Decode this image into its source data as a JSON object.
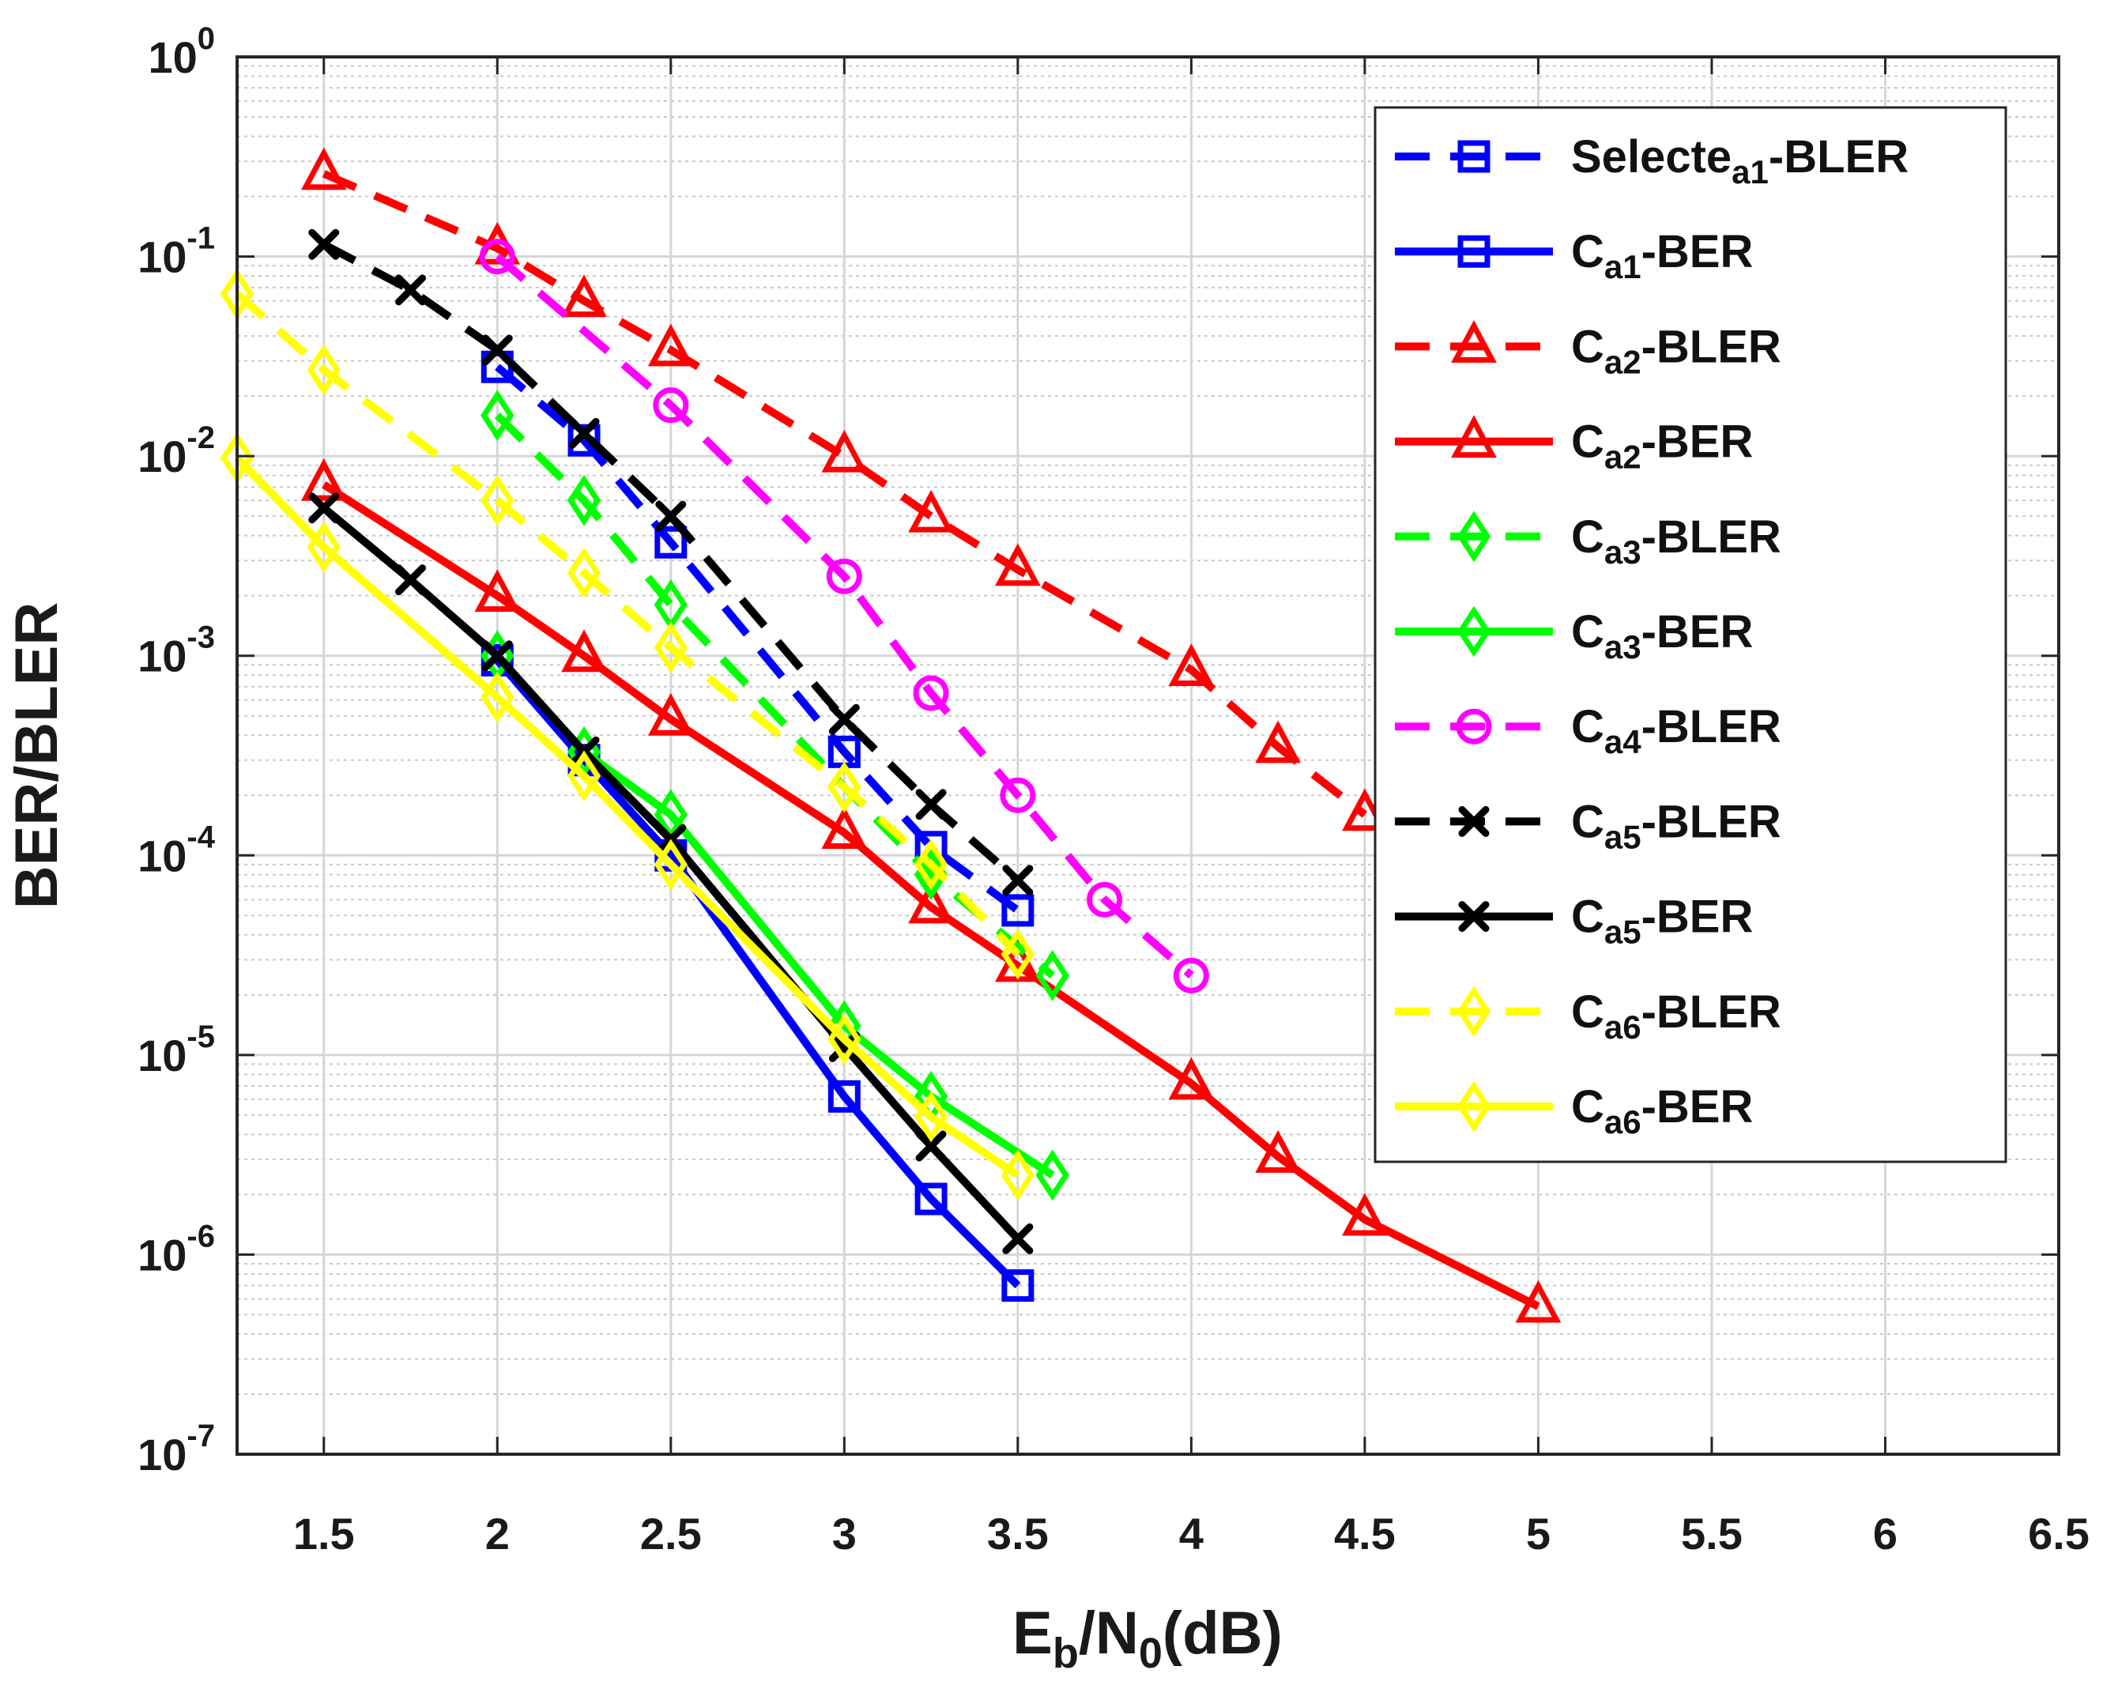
{
  "chart_data": {
    "type": "line",
    "yscale": "log",
    "xlim": [
      1.25,
      6.5
    ],
    "ylim": [
      1e-07,
      1
    ],
    "x_ticks": [
      "1.5",
      "2",
      "2.5",
      "3",
      "3.5",
      "4",
      "4.5",
      "5",
      "5.5",
      "6",
      "6.5"
    ],
    "y_ticks": [
      {
        "base": "10",
        "exp": "0"
      },
      {
        "base": "10",
        "exp": "-1"
      },
      {
        "base": "10",
        "exp": "-2"
      },
      {
        "base": "10",
        "exp": "-3"
      },
      {
        "base": "10",
        "exp": "-4"
      },
      {
        "base": "10",
        "exp": "-5"
      },
      {
        "base": "10",
        "exp": "-6"
      },
      {
        "base": "10",
        "exp": "-7"
      }
    ],
    "xlabel": {
      "main": "E",
      "sub": "b",
      "mid": "/N",
      "sub2": "0",
      "tail": "(dB)"
    },
    "ylabel": "BER/BLER",
    "grid": true,
    "legend_position": "top-right",
    "series": [
      {
        "key": "a1-bler",
        "label_main": "Selecte",
        "label_sub": "a1",
        "label_tail": "-BLER",
        "color": "#0000ff",
        "dash": "dashed",
        "marker": "square",
        "x": [
          2,
          2.25,
          2.5,
          3,
          3.25,
          3.5
        ],
        "y": [
          0.028,
          0.012,
          0.0037,
          0.00033,
          0.00011,
          5.3e-05
        ]
      },
      {
        "key": "a1-ber",
        "label_main": "C",
        "label_sub": "a1",
        "label_tail": "-BER",
        "color": "#0000ff",
        "dash": "solid",
        "marker": "square",
        "x": [
          2,
          2.25,
          2.5,
          3,
          3.25,
          3.5
        ],
        "y": [
          0.00095,
          0.0003,
          0.0001,
          6.2e-06,
          1.9e-06,
          7e-07
        ]
      },
      {
        "key": "a2-bler",
        "label_main": "C",
        "label_sub": "a2",
        "label_tail": "-BLER",
        "color": "#ff0000",
        "dash": "dashed",
        "marker": "triangle",
        "x": [
          1.5,
          2,
          2.25,
          2.5,
          3,
          3.25,
          3.5,
          4,
          4.25,
          4.5
        ],
        "y": [
          0.26,
          0.11,
          0.06,
          0.034,
          0.01,
          0.005,
          0.0027,
          0.00085,
          0.00035,
          0.00016
        ]
      },
      {
        "key": "a2-ber",
        "label_main": "C",
        "label_sub": "a2",
        "label_tail": "-BER",
        "color": "#ff0000",
        "dash": "solid",
        "marker": "triangle",
        "x": [
          1.5,
          2,
          2.25,
          2.5,
          3,
          3.25,
          3.5,
          4,
          4.25,
          4.5,
          5
        ],
        "y": [
          0.0072,
          0.002,
          0.001,
          0.00048,
          0.00013,
          5.5e-05,
          2.8e-05,
          7.2e-06,
          3.1e-06,
          1.5e-06,
          5.5e-07
        ]
      },
      {
        "key": "a3-bler",
        "label_main": "C",
        "label_sub": "a3",
        "label_tail": "-BLER",
        "color": "#00ff00",
        "dash": "dashed",
        "marker": "diamond",
        "x": [
          2,
          2.25,
          2.5,
          3,
          3.25,
          3.6
        ],
        "y": [
          0.016,
          0.006,
          0.0018,
          0.00022,
          8e-05,
          2.5e-05
        ]
      },
      {
        "key": "a3-ber",
        "label_main": "C",
        "label_sub": "a3",
        "label_tail": "-BER",
        "color": "#00ff00",
        "dash": "solid",
        "marker": "diamond",
        "x": [
          2,
          2.25,
          2.5,
          3,
          3.25,
          3.6
        ],
        "y": [
          0.001,
          0.00033,
          0.00016,
          1.4e-05,
          6.2e-06,
          2.5e-06
        ]
      },
      {
        "key": "a4-bler",
        "label_main": "C",
        "label_sub": "a4",
        "label_tail": "-BLER",
        "color": "#ff00ff",
        "dash": "dashed",
        "marker": "circle",
        "x": [
          2,
          2.5,
          3,
          3.25,
          3.5,
          3.75,
          4
        ],
        "y": [
          0.1,
          0.018,
          0.0025,
          0.00065,
          0.0002,
          6e-05,
          2.5e-05
        ]
      },
      {
        "key": "a5-bler",
        "label_main": "C",
        "label_sub": "a5",
        "label_tail": "-BLER",
        "color": "#000000",
        "dash": "dashed",
        "marker": "x",
        "x": [
          1.5,
          1.75,
          2,
          2.25,
          2.5,
          3,
          3.25,
          3.5
        ],
        "y": [
          0.115,
          0.068,
          0.034,
          0.013,
          0.005,
          0.00048,
          0.00018,
          7.5e-05
        ]
      },
      {
        "key": "a5-ber",
        "label_main": "C",
        "label_sub": "a5",
        "label_tail": "-BER",
        "color": "#000000",
        "dash": "solid",
        "marker": "x",
        "x": [
          1.5,
          1.75,
          2,
          2.25,
          2.5,
          3,
          3.25,
          3.5
        ],
        "y": [
          0.0055,
          0.0024,
          0.001,
          0.00033,
          0.00012,
          1.1e-05,
          3.5e-06,
          1.2e-06
        ]
      },
      {
        "key": "a6-bler",
        "label_main": "C",
        "label_sub": "a6",
        "label_tail": "-BLER",
        "color": "#ffff00",
        "dash": "dashed",
        "marker": "diamond",
        "x": [
          1.25,
          1.5,
          2,
          2.25,
          2.5,
          3,
          3.25,
          3.5
        ],
        "y": [
          0.065,
          0.027,
          0.006,
          0.0026,
          0.0011,
          0.00022,
          9e-05,
          3.2e-05
        ]
      },
      {
        "key": "a6-ber",
        "label_main": "C",
        "label_sub": "a6",
        "label_tail": "-BER",
        "color": "#ffff00",
        "dash": "solid",
        "marker": "diamond",
        "x": [
          1.25,
          1.5,
          2,
          2.25,
          2.5,
          3,
          3.25,
          3.5
        ],
        "y": [
          0.0098,
          0.0035,
          0.00062,
          0.00025,
          9e-05,
          1.2e-05,
          4.9e-06,
          2.5e-06
        ]
      }
    ]
  }
}
